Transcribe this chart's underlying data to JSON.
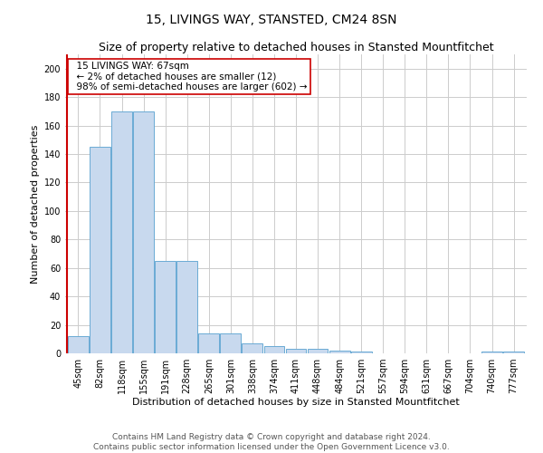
{
  "title": "15, LIVINGS WAY, STANSTED, CM24 8SN",
  "subtitle": "Size of property relative to detached houses in Stansted Mountfitchet",
  "xlabel": "Distribution of detached houses by size in Stansted Mountfitchet",
  "ylabel": "Number of detached properties",
  "footnote1": "Contains HM Land Registry data © Crown copyright and database right 2024.",
  "footnote2": "Contains public sector information licensed under the Open Government Licence v3.0.",
  "annotation_line1": "  15 LIVINGS WAY: 67sqm",
  "annotation_line2": "  ← 2% of detached houses are smaller (12)",
  "annotation_line3": "  98% of semi-detached houses are larger (602) →",
  "bar_color": "#c8d9ee",
  "bar_edge_color": "#6aaad4",
  "highlight_color": "#cc0000",
  "categories": [
    "45sqm",
    "82sqm",
    "118sqm",
    "155sqm",
    "191sqm",
    "228sqm",
    "265sqm",
    "301sqm",
    "338sqm",
    "374sqm",
    "411sqm",
    "448sqm",
    "484sqm",
    "521sqm",
    "557sqm",
    "594sqm",
    "631sqm",
    "667sqm",
    "704sqm",
    "740sqm",
    "777sqm"
  ],
  "values": [
    12,
    145,
    170,
    170,
    65,
    65,
    14,
    14,
    7,
    5,
    3,
    3,
    2,
    1,
    0,
    0,
    0,
    0,
    0,
    1,
    1
  ],
  "red_line_x": -0.5,
  "ylim": [
    0,
    210
  ],
  "yticks": [
    0,
    20,
    40,
    60,
    80,
    100,
    120,
    140,
    160,
    180,
    200
  ],
  "background_color": "#ffffff",
  "grid_color": "#cccccc",
  "title_fontsize": 10,
  "subtitle_fontsize": 9,
  "axis_label_fontsize": 8,
  "tick_fontsize": 7,
  "annotation_fontsize": 7.5,
  "footnote_fontsize": 6.5
}
